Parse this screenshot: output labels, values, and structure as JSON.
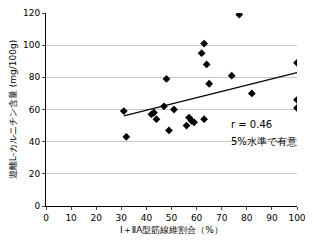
{
  "chart_data": {
    "type": "scatter",
    "x_label": "Ⅰ＋ⅡA型筋線維割合（%）",
    "y_label": "遊離L-カルニチン含量 (mg/100g)",
    "x": [
      31,
      32,
      42,
      43,
      44,
      47,
      48,
      49,
      51,
      56,
      57,
      58,
      59,
      62,
      63,
      63,
      64,
      65,
      74,
      77,
      82,
      100,
      100,
      100
    ],
    "values": [
      59,
      43,
      57,
      58,
      54,
      62,
      79,
      47,
      60,
      50,
      55,
      53,
      52,
      95,
      101,
      54,
      88,
      76,
      81,
      119,
      70,
      89,
      66,
      61
    ],
    "color": "#000000",
    "marker": "diamond",
    "trend_line": {
      "x": [
        31,
        100
      ],
      "values": [
        56,
        83
      ]
    },
    "annotations": [
      "r = 0.46",
      "5%水準で有意"
    ],
    "xlim": [
      0,
      100
    ],
    "xticks": [
      0,
      10,
      20,
      30,
      40,
      50,
      60,
      70,
      80,
      90,
      100
    ],
    "ylim": [
      0,
      120
    ],
    "yticks": [
      0,
      20,
      40,
      60,
      80,
      100,
      120
    ],
    "grid": true
  }
}
